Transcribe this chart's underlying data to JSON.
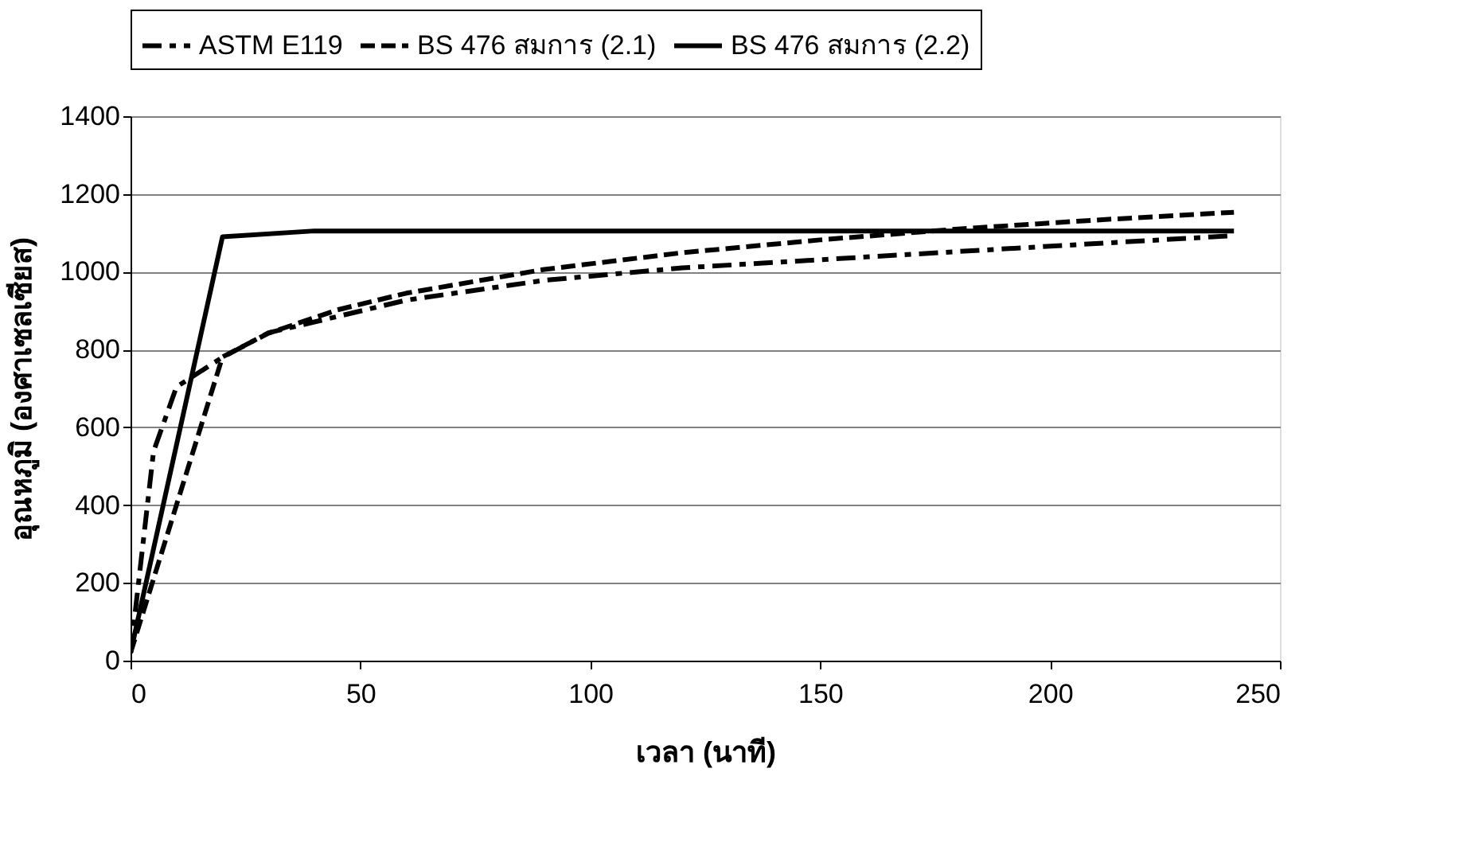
{
  "chart_data": {
    "type": "line",
    "xlabel": "เวลา (นาที)",
    "ylabel": "อุณหภูมิ (องศาเซลเซียส)",
    "xlim": [
      0,
      250
    ],
    "xticks": [
      0,
      50,
      100,
      150,
      200,
      250
    ],
    "ylim": [
      0,
      1400
    ],
    "yticks": [
      0,
      200,
      400,
      600,
      800,
      1000,
      1200,
      1400
    ],
    "grid": "y",
    "legend": "top",
    "marker": "none",
    "series": [
      {
        "name": "ASTM E119",
        "color": "#000000",
        "line_style": "dashdot",
        "x": [
          0,
          5,
          10,
          20,
          30,
          60,
          90,
          120,
          180,
          240
        ],
        "values": [
          20,
          538,
          704,
          780,
          843,
          927,
          978,
          1010,
          1052,
          1093
        ]
      },
      {
        "name": "BS 476 สมการ (2.1)",
        "color": "#000000",
        "line_style": "dashed",
        "x": [
          0,
          20,
          30,
          45,
          60,
          90,
          120,
          150,
          180,
          210,
          240
        ],
        "values": [
          20,
          781,
          842,
          902,
          945,
          1006,
          1049,
          1082,
          1110,
          1133,
          1153
        ]
      },
      {
        "name": "BS 476 สมการ (2.2)",
        "color": "#000000",
        "line_style": "solid",
        "x": [
          0,
          20,
          40,
          240
        ],
        "values": [
          20,
          1090,
          1105,
          1105
        ]
      }
    ]
  }
}
